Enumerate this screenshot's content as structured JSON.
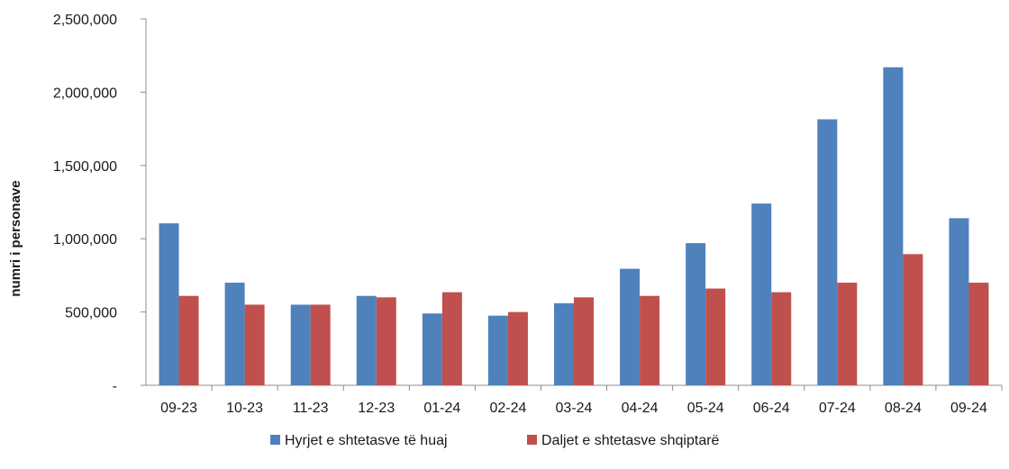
{
  "chart_data": {
    "type": "bar",
    "title": "",
    "xlabel": "",
    "ylabel": "numri i personave",
    "ylim": [
      0,
      2500000
    ],
    "yticks": [
      0,
      500000,
      1000000,
      1500000,
      2000000,
      2500000
    ],
    "ytick_labels": [
      "-",
      "500,000",
      "1,000,000",
      "1,500,000",
      "2,000,000",
      "2,500,000"
    ],
    "grid": false,
    "legend_position": "bottom",
    "categories": [
      "09-23",
      "10-23",
      "11-23",
      "12-23",
      "01-24",
      "02-24",
      "03-24",
      "04-24",
      "05-24",
      "06-24",
      "07-24",
      "08-24",
      "09-24"
    ],
    "series": [
      {
        "name": "Hyrjet e shtetasve të huaj",
        "color": "#4f81bd",
        "values": [
          1105000,
          700000,
          550000,
          610000,
          490000,
          475000,
          560000,
          795000,
          970000,
          1240000,
          1815000,
          2170000,
          1140000
        ]
      },
      {
        "name": "Daljet e shtetasve shqiptarë",
        "color": "#c0504d",
        "values": [
          610000,
          550000,
          550000,
          600000,
          635000,
          500000,
          600000,
          610000,
          660000,
          635000,
          700000,
          895000,
          700000
        ]
      }
    ]
  }
}
